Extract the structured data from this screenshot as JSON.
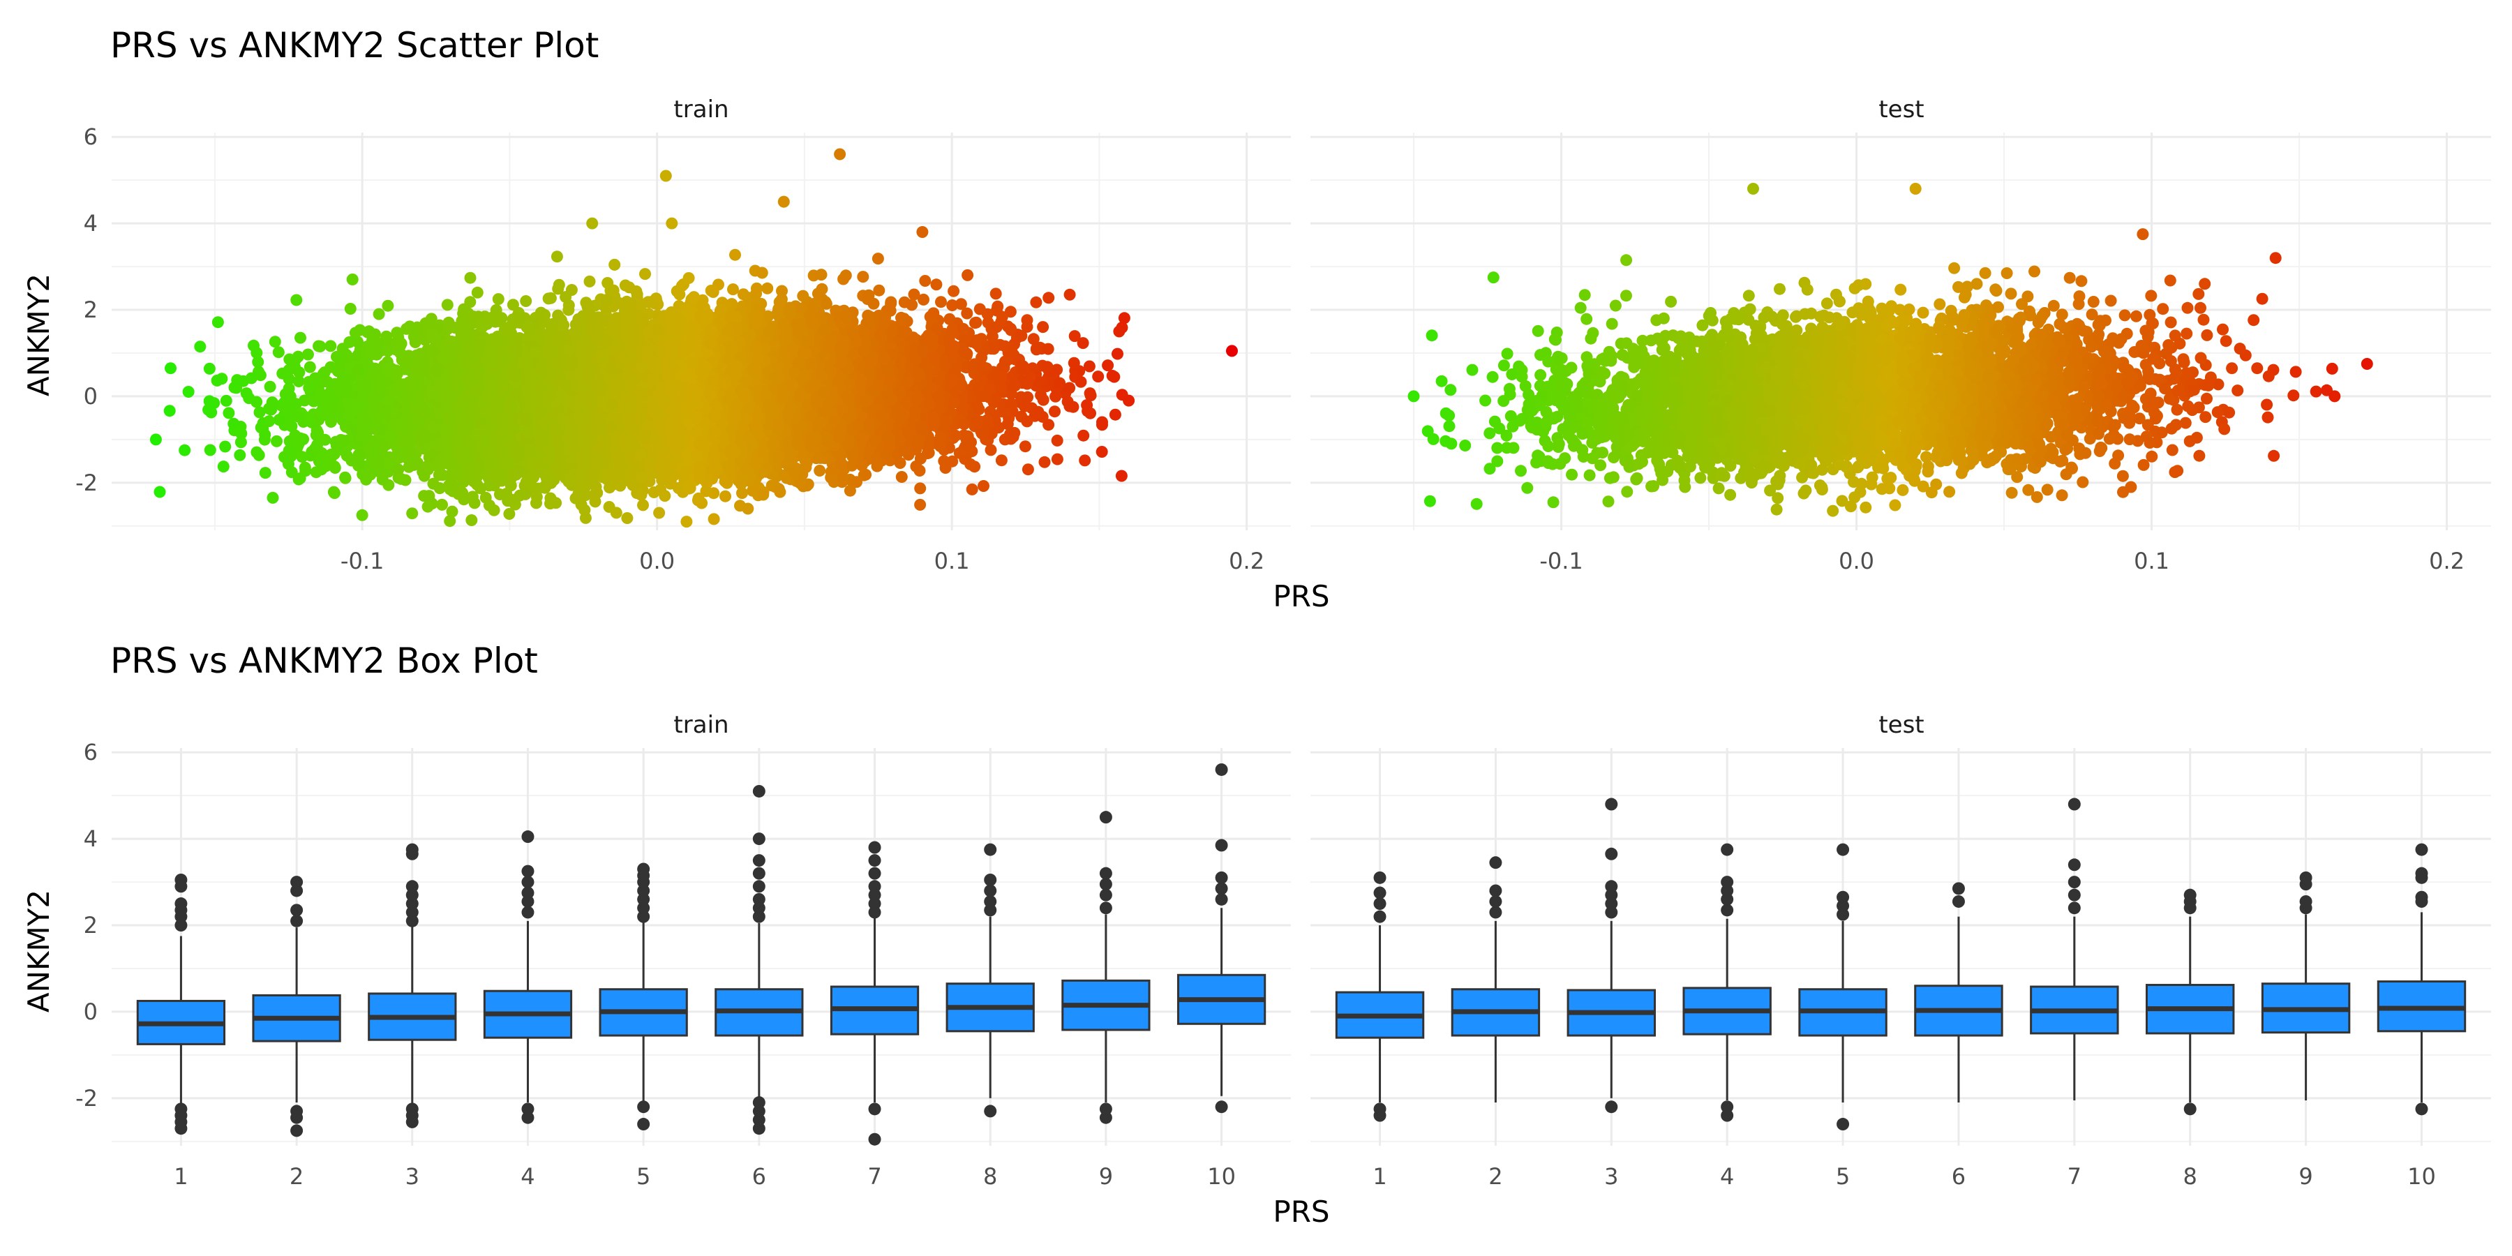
{
  "chart_data": [
    {
      "type": "scatter",
      "title": "PRS vs ANKMY2 Scatter Plot",
      "xlabel": "PRS",
      "ylabel": "ANKMY2",
      "xlim": [
        -0.185,
        0.215
      ],
      "ylim": [
        -3.1,
        6.1
      ],
      "x_ticks": [
        -0.1,
        0.0,
        0.1,
        0.2
      ],
      "x_tick_labels": [
        "-0.1",
        "0.0",
        "0.1",
        "0.2"
      ],
      "y_ticks": [
        -2,
        0,
        2,
        4,
        6
      ],
      "y_tick_labels": [
        "-2",
        "0",
        "2",
        "4",
        "6"
      ],
      "grid": true,
      "color_scale": {
        "low": "#22ee00",
        "mid": "#d2aa00",
        "high": "#e80000",
        "range": [
          -0.17,
          0.195
        ]
      },
      "panels": [
        {
          "name": "train",
          "cloud": {
            "n": 14000,
            "x_mean": 0.0,
            "x_sd": 0.05,
            "y_mean": 0.0,
            "y_sd": 0.85,
            "slope": 2.5,
            "x_range": [
              -0.17,
              0.16
            ],
            "y_range": [
              -2.9,
              3.4
            ]
          },
          "outliers": [
            [
              0.195,
              1.05
            ],
            [
              0.003,
              5.1
            ],
            [
              0.062,
              5.6
            ],
            [
              0.043,
              4.5
            ],
            [
              -0.022,
              4.0
            ],
            [
              0.005,
              4.0
            ],
            [
              0.09,
              3.8
            ],
            [
              -0.17,
              -1.0
            ],
            [
              0.16,
              -0.1
            ],
            [
              -0.1,
              -2.75
            ],
            [
              0.01,
              -2.9
            ],
            [
              0.14,
              2.35
            ],
            [
              -0.165,
              0.65
            ],
            [
              -0.155,
              1.15
            ]
          ]
        },
        {
          "name": "test",
          "cloud": {
            "n": 5000,
            "x_mean": 0.0,
            "x_sd": 0.048,
            "y_mean": 0.0,
            "y_sd": 0.85,
            "slope": 2.5,
            "x_range": [
              -0.15,
              0.175
            ],
            "y_range": [
              -2.7,
              3.2
            ]
          },
          "outliers": [
            [
              -0.15,
              0.0
            ],
            [
              -0.035,
              4.8
            ],
            [
              0.02,
              4.8
            ],
            [
              0.097,
              3.75
            ],
            [
              0.173,
              0.75
            ],
            [
              0.142,
              3.2
            ],
            [
              0.118,
              2.6
            ],
            [
              -0.123,
              2.75
            ],
            [
              -0.078,
              3.15
            ],
            [
              -0.008,
              -2.65
            ],
            [
              0.093,
              -2.1
            ],
            [
              0.162,
              0.0
            ]
          ]
        }
      ]
    },
    {
      "type": "box",
      "title": "PRS vs ANKMY2 Box Plot",
      "xlabel": "PRS",
      "ylabel": "ANKMY2",
      "ylim": [
        -3.1,
        6.1
      ],
      "categories": [
        "1",
        "2",
        "3",
        "4",
        "5",
        "6",
        "7",
        "8",
        "9",
        "10"
      ],
      "y_ticks": [
        -2,
        0,
        2,
        4,
        6
      ],
      "y_tick_labels": [
        "-2",
        "0",
        "2",
        "4",
        "6"
      ],
      "grid": true,
      "box_fill": "#1e90ff",
      "box_stroke": "#333333",
      "panels": [
        {
          "name": "train",
          "boxes": [
            {
              "q1": -0.75,
              "median": -0.28,
              "q3": 0.25,
              "lower": -2.15,
              "upper": 1.75,
              "outliers": [
                2.0,
                2.2,
                2.35,
                2.5,
                2.9,
                3.05,
                -2.25,
                -2.4,
                -2.55,
                -2.7
              ]
            },
            {
              "q1": -0.68,
              "median": -0.15,
              "q3": 0.38,
              "lower": -2.1,
              "upper": 1.95,
              "outliers": [
                2.1,
                2.35,
                2.8,
                3.0,
                -2.3,
                -2.45,
                -2.75
              ]
            },
            {
              "q1": -0.65,
              "median": -0.13,
              "q3": 0.42,
              "lower": -2.15,
              "upper": 2.0,
              "outliers": [
                2.1,
                2.3,
                2.5,
                2.7,
                2.9,
                3.65,
                3.75,
                -2.25,
                -2.4,
                -2.55
              ]
            },
            {
              "q1": -0.6,
              "median": -0.05,
              "q3": 0.48,
              "lower": -2.1,
              "upper": 2.1,
              "outliers": [
                2.3,
                2.55,
                2.75,
                3.0,
                3.25,
                4.05,
                -2.25,
                -2.45
              ]
            },
            {
              "q1": -0.55,
              "median": 0.0,
              "q3": 0.52,
              "lower": -2.1,
              "upper": 2.1,
              "outliers": [
                2.2,
                2.4,
                2.6,
                2.8,
                3.0,
                3.15,
                3.3,
                -2.2,
                -2.6
              ]
            },
            {
              "q1": -0.55,
              "median": 0.02,
              "q3": 0.52,
              "lower": -2.0,
              "upper": 2.05,
              "outliers": [
                2.2,
                2.4,
                2.6,
                2.9,
                3.2,
                3.5,
                4.0,
                5.1,
                -2.1,
                -2.3,
                -2.5,
                -2.7
              ]
            },
            {
              "q1": -0.52,
              "median": 0.07,
              "q3": 0.58,
              "lower": -2.1,
              "upper": 2.2,
              "outliers": [
                2.3,
                2.5,
                2.7,
                2.9,
                3.2,
                3.5,
                3.8,
                -2.25,
                -2.95
              ]
            },
            {
              "q1": -0.45,
              "median": 0.1,
              "q3": 0.65,
              "lower": -2.0,
              "upper": 2.2,
              "outliers": [
                2.35,
                2.55,
                2.8,
                3.05,
                3.75,
                -2.3
              ]
            },
            {
              "q1": -0.42,
              "median": 0.15,
              "q3": 0.72,
              "lower": -2.1,
              "upper": 2.25,
              "outliers": [
                2.4,
                2.7,
                2.95,
                3.2,
                4.5,
                -2.25,
                -2.45
              ]
            },
            {
              "q1": -0.28,
              "median": 0.28,
              "q3": 0.85,
              "lower": -1.95,
              "upper": 2.4,
              "outliers": [
                2.6,
                2.85,
                3.1,
                3.85,
                5.6,
                -2.2
              ]
            }
          ]
        },
        {
          "name": "test",
          "boxes": [
            {
              "q1": -0.6,
              "median": -0.1,
              "q3": 0.45,
              "lower": -2.1,
              "upper": 2.0,
              "outliers": [
                2.2,
                2.5,
                2.75,
                3.1,
                -2.25,
                -2.4
              ]
            },
            {
              "q1": -0.55,
              "median": 0.0,
              "q3": 0.52,
              "lower": -2.1,
              "upper": 2.1,
              "outliers": [
                2.3,
                2.55,
                2.8,
                3.45
              ]
            },
            {
              "q1": -0.55,
              "median": -0.02,
              "q3": 0.5,
              "lower": -2.0,
              "upper": 2.1,
              "outliers": [
                2.3,
                2.5,
                2.7,
                2.9,
                3.65,
                4.8,
                -2.2
              ]
            },
            {
              "q1": -0.52,
              "median": 0.02,
              "q3": 0.55,
              "lower": -2.05,
              "upper": 2.15,
              "outliers": [
                2.35,
                2.6,
                2.8,
                3.0,
                3.75,
                -2.2,
                -2.4
              ]
            },
            {
              "q1": -0.55,
              "median": 0.02,
              "q3": 0.52,
              "lower": -2.1,
              "upper": 2.1,
              "outliers": [
                2.25,
                2.45,
                2.65,
                3.75,
                -2.6
              ]
            },
            {
              "q1": -0.55,
              "median": 0.03,
              "q3": 0.6,
              "lower": -2.1,
              "upper": 2.2,
              "outliers": [
                2.55,
                2.85
              ]
            },
            {
              "q1": -0.5,
              "median": 0.02,
              "q3": 0.58,
              "lower": -2.05,
              "upper": 2.2,
              "outliers": [
                2.4,
                2.7,
                3.0,
                3.4,
                4.8
              ]
            },
            {
              "q1": -0.5,
              "median": 0.07,
              "q3": 0.62,
              "lower": -2.1,
              "upper": 2.2,
              "outliers": [
                2.4,
                2.55,
                2.7,
                -2.25
              ]
            },
            {
              "q1": -0.48,
              "median": 0.05,
              "q3": 0.65,
              "lower": -2.05,
              "upper": 2.25,
              "outliers": [
                2.4,
                2.55,
                2.95,
                3.1
              ]
            },
            {
              "q1": -0.45,
              "median": 0.08,
              "q3": 0.7,
              "lower": -2.1,
              "upper": 2.3,
              "outliers": [
                2.55,
                2.65,
                3.1,
                3.2,
                3.75,
                -2.25
              ]
            }
          ]
        }
      ]
    }
  ]
}
